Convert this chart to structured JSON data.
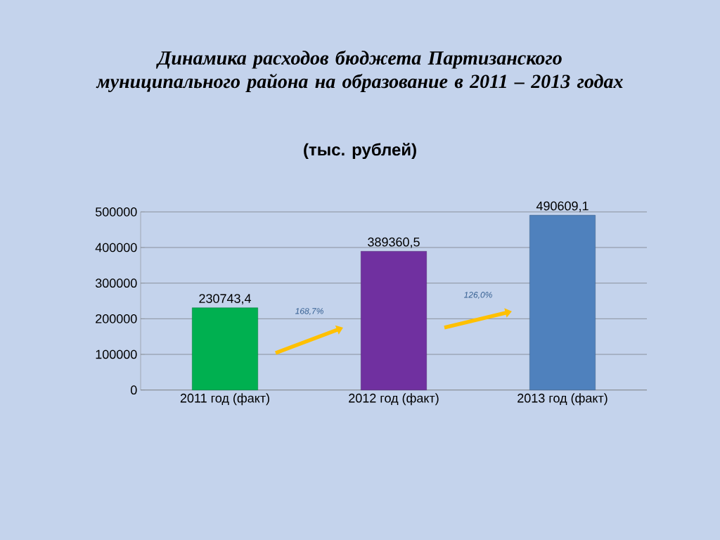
{
  "chart_data": {
    "type": "bar",
    "title": "Динамика расходов бюджета Партизанского муниципального района на образование в 2011 – 2013 годах",
    "subtitle": "(тыс. рублей)",
    "categories": [
      "2011 год (факт)",
      "2012 год (факт)",
      "2013 год (факт)"
    ],
    "values": [
      230743.4,
      389360.5,
      490609.1
    ],
    "value_labels": [
      "230743,4",
      "389360,5",
      "490609,1"
    ],
    "colors": [
      "#00b050",
      "#7030a0",
      "#4f81bd"
    ],
    "ylim": [
      0,
      500000
    ],
    "yticks": [
      0,
      100000,
      200000,
      300000,
      400000,
      500000
    ],
    "grid": "y",
    "annotations": [
      "168,7%",
      "126,0%"
    ]
  }
}
